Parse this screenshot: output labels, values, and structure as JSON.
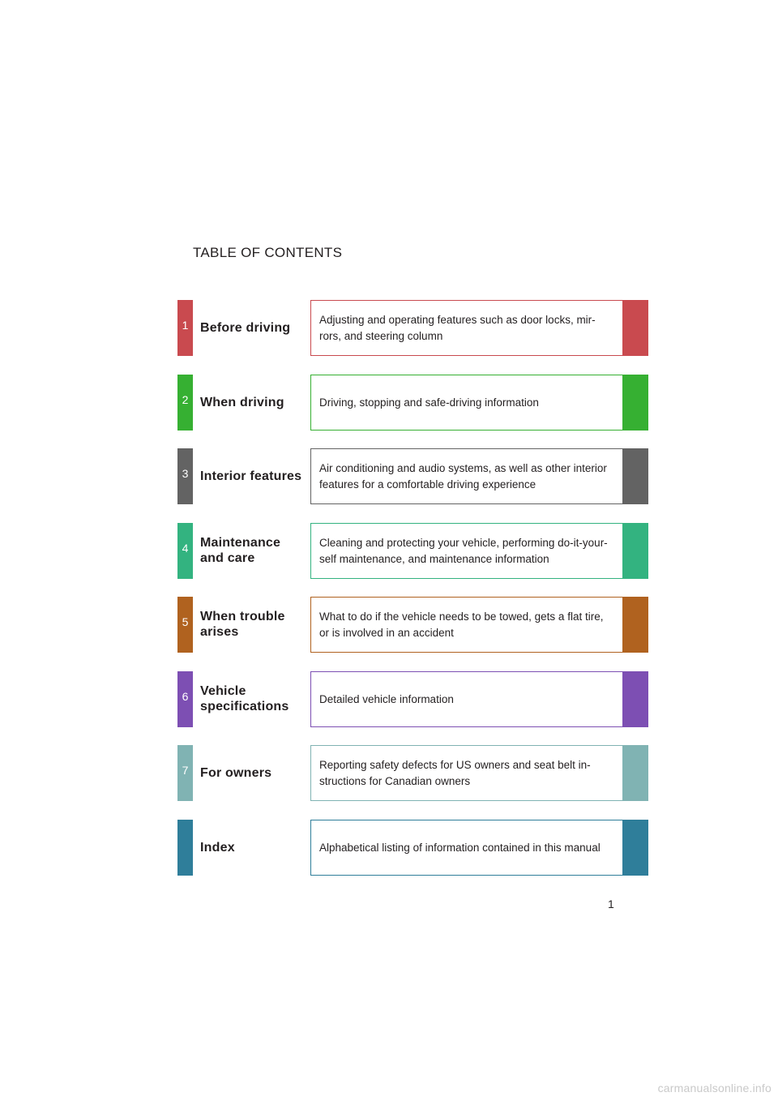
{
  "heading": "TABLE OF CONTENTS",
  "sections": [
    {
      "number": "1",
      "title": "Before driving",
      "description": "Adjusting and operating features such as door locks, mir-\nrors, and steering column",
      "color": "#c94a4f"
    },
    {
      "number": "2",
      "title": "When driving",
      "description": "Driving, stopping and safe-driving information",
      "color": "#36b032"
    },
    {
      "number": "3",
      "title": "Interior features",
      "description": "Air conditioning and audio systems, as well as other interior\nfeatures for a comfortable driving experience",
      "color": "#636363"
    },
    {
      "number": "4",
      "title": "Maintenance\nand care",
      "description": "Cleaning and protecting your vehicle, performing do-it-your-\nself maintenance, and maintenance information",
      "color": "#33b380"
    },
    {
      "number": "5",
      "title": "When trouble\narises",
      "description": "What to do if the vehicle needs to be towed, gets a flat tire,\nor is involved in an accident",
      "color": "#b0621f"
    },
    {
      "number": "6",
      "title": "Vehicle\nspecifications",
      "description": "Detailed vehicle information",
      "color": "#7d4fb3"
    },
    {
      "number": "7",
      "title": "For owners",
      "description": "Reporting safety defects for US owners and seat belt in-\nstructions for Canadian owners",
      "color": "#80b3b3"
    },
    {
      "number": "",
      "title": "Index",
      "description": "Alphabetical listing of information contained in this manual",
      "color": "#2f7e9a"
    }
  ],
  "page_number": "1",
  "watermark": "carmanualsonline.info"
}
